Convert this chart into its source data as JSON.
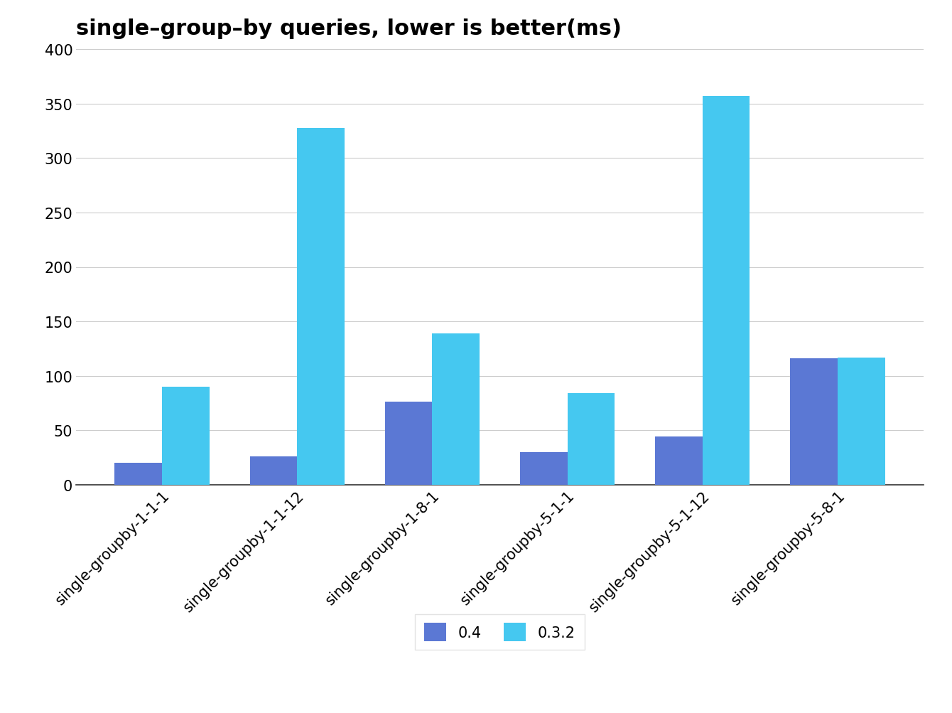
{
  "title": "single–group–by queries, lower is better(ms)",
  "categories": [
    "single-groupby-1-1-1",
    "single-groupby-1-1-12",
    "single-groupby-1-8-1",
    "single-groupby-5-1-1",
    "single-groupby-5-1-12",
    "single-groupby-5-8-1"
  ],
  "series": [
    {
      "name": "0.4",
      "values": [
        20,
        26,
        76,
        30,
        44,
        116
      ],
      "color": "#5b78d4"
    },
    {
      "name": "0.3.2",
      "values": [
        90,
        328,
        139,
        84,
        357,
        117
      ],
      "color": "#45c8f0"
    }
  ],
  "ylim": [
    0,
    400
  ],
  "yticks": [
    0,
    50,
    100,
    150,
    200,
    250,
    300,
    350,
    400
  ],
  "background_color": "#ffffff",
  "grid_color": "#cccccc",
  "title_fontsize": 22,
  "tick_fontsize": 15,
  "legend_fontsize": 15,
  "bar_width": 0.35,
  "legend_ncol": 2
}
